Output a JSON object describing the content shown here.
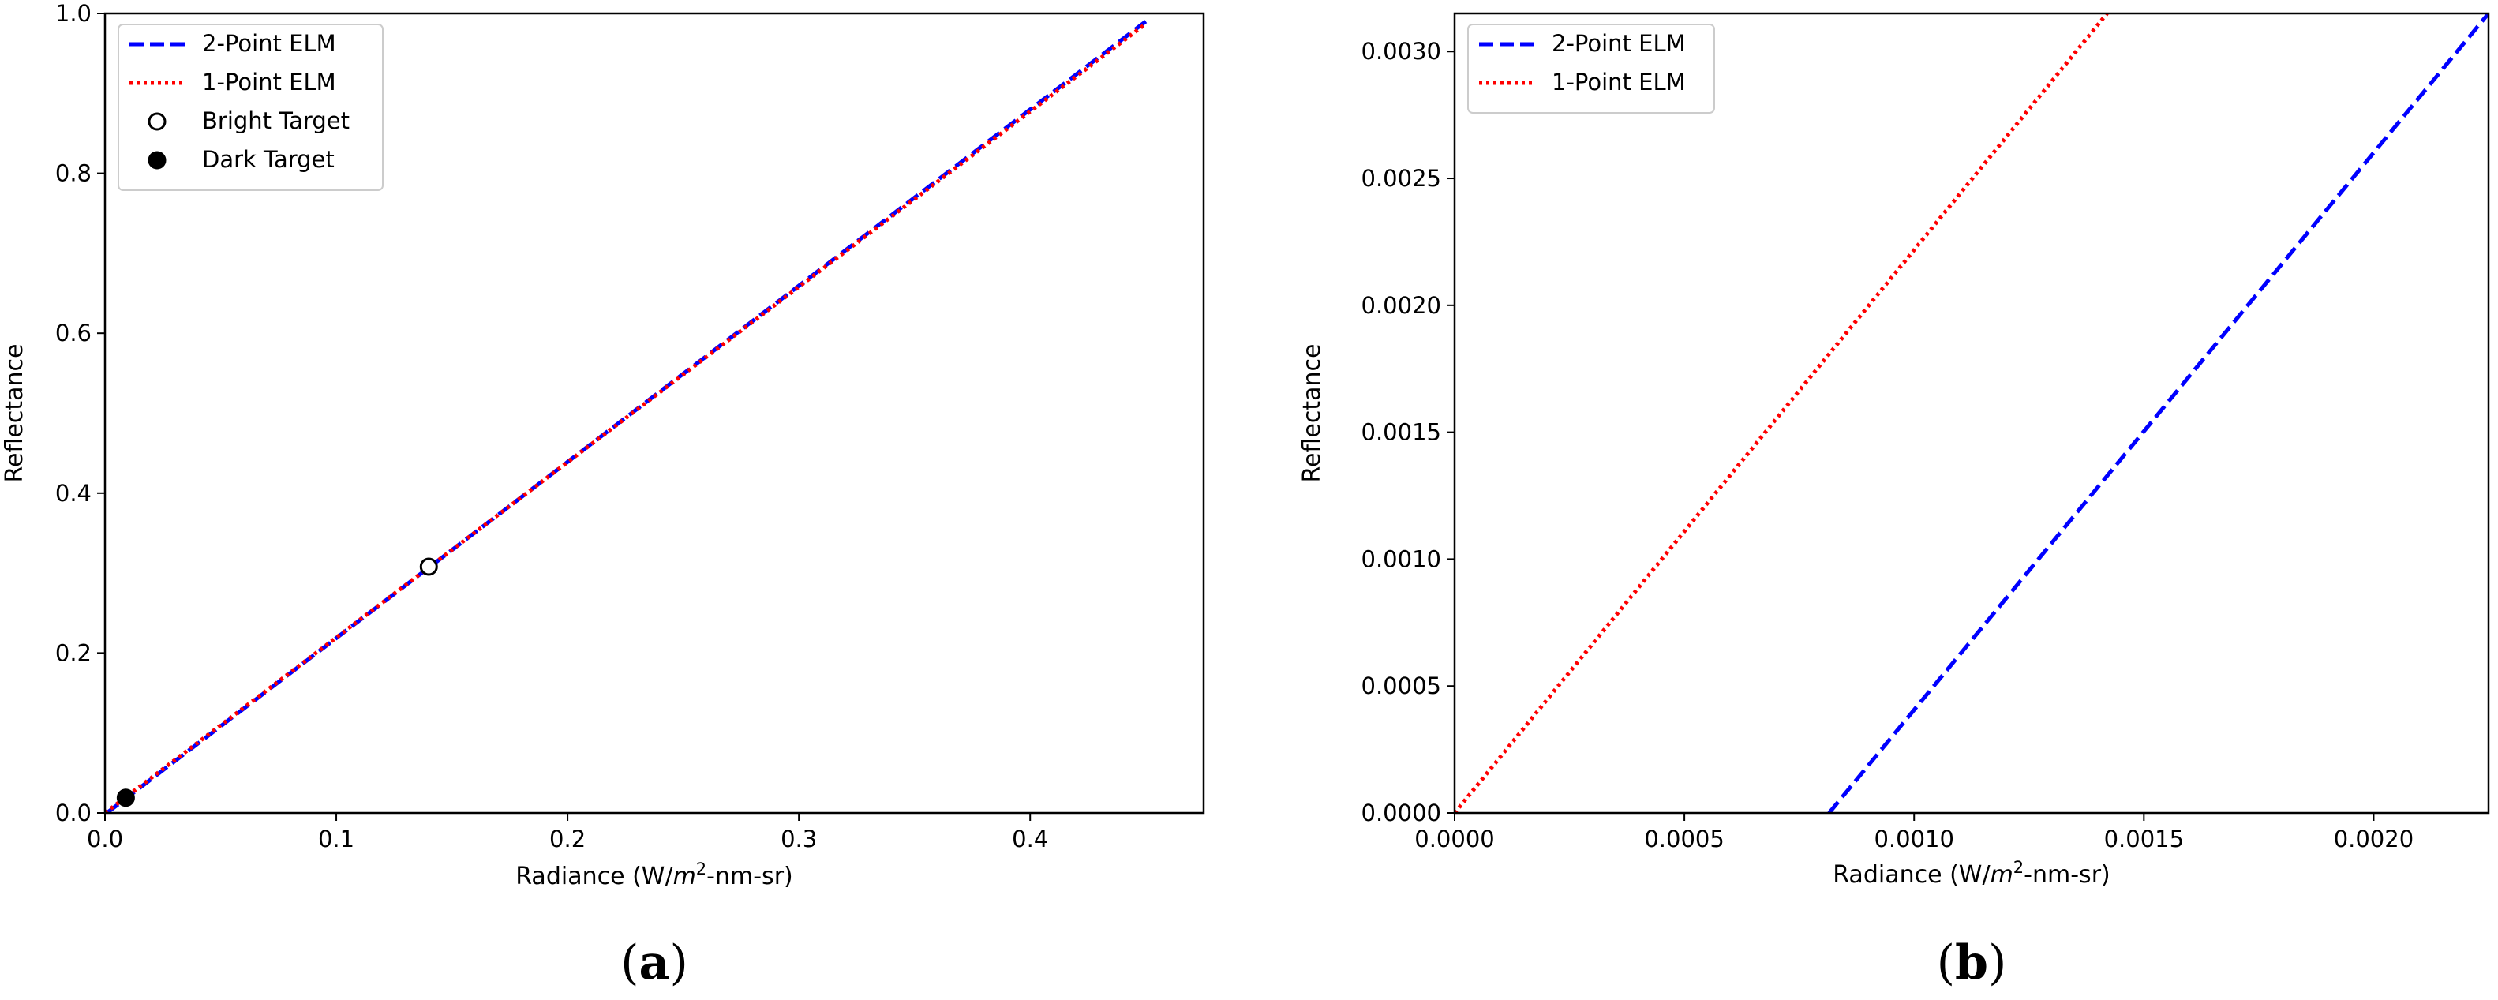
{
  "chart_data": [
    {
      "type": "line",
      "panel_label": "(a)",
      "xlabel": "Radiance (W/m²-nm-sr)",
      "ylabel": "Reflectance",
      "xlim": [
        0,
        0.475
      ],
      "ylim": [
        0,
        1.0
      ],
      "x_ticks": [
        "0.0",
        "0.1",
        "0.2",
        "0.3",
        "0.4"
      ],
      "x_tick_values": [
        0,
        0.1,
        0.2,
        0.3,
        0.4
      ],
      "y_ticks": [
        "0.0",
        "0.2",
        "0.4",
        "0.6",
        "0.8",
        "1.0"
      ],
      "y_tick_values": [
        0,
        0.2,
        0.4,
        0.6,
        0.8,
        1.0
      ],
      "legend_position": "top-left",
      "series": [
        {
          "name": "2-Point ELM",
          "style": "dashed",
          "color": "#0000ff",
          "x": [
            0.0008,
            0.45
          ],
          "y": [
            0.0,
            0.99
          ]
        },
        {
          "name": "1-Point ELM",
          "style": "dotted",
          "color": "#ff0000",
          "x": [
            0.0,
            0.45
          ],
          "y": [
            0.0,
            0.987
          ]
        }
      ],
      "points": [
        {
          "name": "Bright Target",
          "marker": "open-circle",
          "x": 0.14,
          "y": 0.308
        },
        {
          "name": "Dark Target",
          "marker": "filled-circle",
          "x": 0.009,
          "y": 0.019
        }
      ]
    },
    {
      "type": "line",
      "panel_label": "(b)",
      "xlabel": "Radiance (W/m²-nm-sr)",
      "ylabel": "Reflectance",
      "xlim": [
        0,
        0.00225
      ],
      "ylim": [
        0,
        0.00315
      ],
      "x_ticks": [
        "0.0000",
        "0.0005",
        "0.0010",
        "0.0015",
        "0.0020"
      ],
      "x_tick_values": [
        0,
        0.0005,
        0.001,
        0.0015,
        0.002
      ],
      "y_ticks": [
        "0.0000",
        "0.0005",
        "0.0010",
        "0.0015",
        "0.0020",
        "0.0025",
        "0.0030"
      ],
      "y_tick_values": [
        0,
        0.0005,
        0.001,
        0.0015,
        0.002,
        0.0025,
        0.003
      ],
      "legend_position": "top-left",
      "series": [
        {
          "name": "2-Point ELM",
          "style": "dashed",
          "color": "#0000ff",
          "x": [
            0.000815,
            0.00225
          ],
          "y": [
            0.0,
            0.00315
          ]
        },
        {
          "name": "1-Point ELM",
          "style": "dotted",
          "color": "#ff0000",
          "x": [
            0.0,
            0.00142
          ],
          "y": [
            0.0,
            0.00315
          ]
        }
      ],
      "points": []
    }
  ]
}
